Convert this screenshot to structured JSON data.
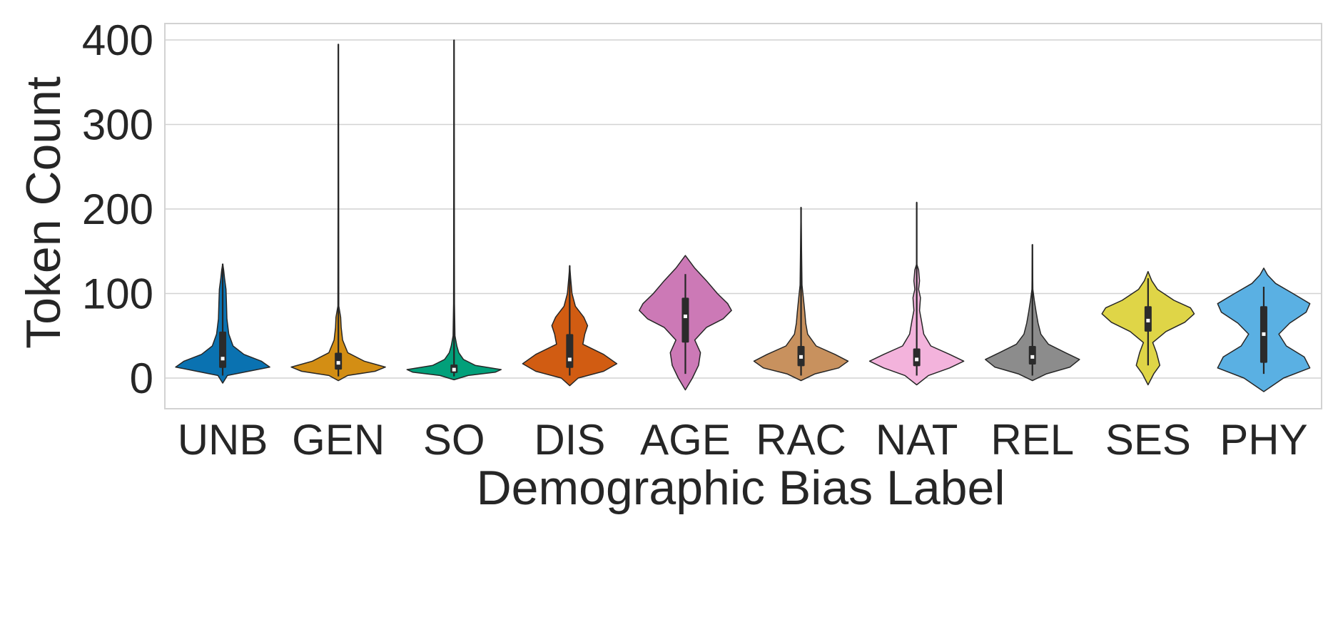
{
  "chart_data": {
    "type": "violin",
    "xlabel": "Demographic Bias Label",
    "ylabel": "Token Count",
    "ylim": [
      -37,
      420
    ],
    "yticks": [
      0,
      100,
      200,
      300,
      400
    ],
    "grid": "horizontal",
    "categories": [
      "UNB",
      "GEN",
      "SO",
      "DIS",
      "AGE",
      "RAC",
      "NAT",
      "REL",
      "SES",
      "PHY"
    ],
    "series": [
      {
        "category": "UNB",
        "color": "#0a72b1",
        "min": 3,
        "q1": 12,
        "median": 23,
        "q3": 55,
        "max": 135,
        "density": [
          [
            -6,
            0.0
          ],
          [
            3,
            0.1
          ],
          [
            8,
            0.55
          ],
          [
            13,
            1.0
          ],
          [
            20,
            0.82
          ],
          [
            28,
            0.45
          ],
          [
            38,
            0.22
          ],
          [
            52,
            0.13
          ],
          [
            70,
            0.09
          ],
          [
            90,
            0.08
          ],
          [
            105,
            0.07
          ],
          [
            118,
            0.04
          ],
          [
            128,
            0.02
          ],
          [
            135,
            0.0
          ]
        ]
      },
      {
        "category": "GEN",
        "color": "#d38e14",
        "min": 2,
        "q1": 10,
        "median": 18,
        "q3": 30,
        "max": 395,
        "density": [
          [
            -3,
            0.0
          ],
          [
            3,
            0.2
          ],
          [
            8,
            0.78
          ],
          [
            13,
            1.0
          ],
          [
            20,
            0.55
          ],
          [
            30,
            0.2
          ],
          [
            45,
            0.09
          ],
          [
            60,
            0.06
          ],
          [
            72,
            0.05
          ],
          [
            85,
            0.01
          ],
          [
            395,
            0.0
          ]
        ]
      },
      {
        "category": "SO",
        "color": "#02a07a",
        "min": 2,
        "q1": 6,
        "median": 10,
        "q3": 16,
        "max": 400,
        "density": [
          [
            -2,
            0.0
          ],
          [
            3,
            0.3
          ],
          [
            7,
            0.88
          ],
          [
            10,
            1.0
          ],
          [
            15,
            0.45
          ],
          [
            22,
            0.2
          ],
          [
            30,
            0.1
          ],
          [
            38,
            0.06
          ],
          [
            50,
            0.02
          ],
          [
            88,
            0.01
          ],
          [
            400,
            0.0
          ]
        ]
      },
      {
        "category": "DIS",
        "color": "#d15c12",
        "min": 3,
        "q1": 12,
        "median": 22,
        "q3": 52,
        "max": 133,
        "density": [
          [
            -9,
            0.0
          ],
          [
            0,
            0.18
          ],
          [
            8,
            0.72
          ],
          [
            17,
            1.0
          ],
          [
            28,
            0.72
          ],
          [
            40,
            0.28
          ],
          [
            52,
            0.32
          ],
          [
            62,
            0.38
          ],
          [
            72,
            0.3
          ],
          [
            85,
            0.12
          ],
          [
            100,
            0.05
          ],
          [
            118,
            0.02
          ],
          [
            133,
            0.0
          ]
        ]
      },
      {
        "category": "AGE",
        "color": "#cc79b6",
        "min": 5,
        "q1": 42,
        "median": 73,
        "q3": 95,
        "max": 123,
        "density": [
          [
            -14,
            0.0
          ],
          [
            0,
            0.15
          ],
          [
            15,
            0.28
          ],
          [
            30,
            0.32
          ],
          [
            45,
            0.2
          ],
          [
            60,
            0.45
          ],
          [
            70,
            0.8
          ],
          [
            80,
            0.98
          ],
          [
            88,
            0.9
          ],
          [
            100,
            0.68
          ],
          [
            115,
            0.45
          ],
          [
            130,
            0.2
          ],
          [
            145,
            0.0
          ]
        ]
      },
      {
        "category": "RAC",
        "color": "#c8915e",
        "min": 3,
        "q1": 14,
        "median": 25,
        "q3": 38,
        "max": 202,
        "density": [
          [
            -3,
            0.0
          ],
          [
            5,
            0.3
          ],
          [
            12,
            0.8
          ],
          [
            20,
            1.0
          ],
          [
            28,
            0.72
          ],
          [
            38,
            0.32
          ],
          [
            52,
            0.14
          ],
          [
            65,
            0.1
          ],
          [
            78,
            0.08
          ],
          [
            95,
            0.05
          ],
          [
            110,
            0.02
          ],
          [
            202,
            0.0
          ]
        ]
      },
      {
        "category": "NAT",
        "color": "#f3b3dc",
        "min": 3,
        "q1": 14,
        "median": 22,
        "q3": 35,
        "max": 208,
        "density": [
          [
            -8,
            0.0
          ],
          [
            3,
            0.25
          ],
          [
            12,
            0.7
          ],
          [
            20,
            1.0
          ],
          [
            28,
            0.7
          ],
          [
            38,
            0.3
          ],
          [
            52,
            0.15
          ],
          [
            68,
            0.1
          ],
          [
            80,
            0.06
          ],
          [
            95,
            0.08
          ],
          [
            105,
            0.04
          ],
          [
            115,
            0.06
          ],
          [
            128,
            0.04
          ],
          [
            135,
            0.0
          ],
          [
            208,
            0.0
          ]
        ]
      },
      {
        "category": "REL",
        "color": "#8c8c8c",
        "min": 3,
        "q1": 16,
        "median": 25,
        "q3": 38,
        "max": 158,
        "density": [
          [
            -3,
            0.0
          ],
          [
            5,
            0.3
          ],
          [
            13,
            0.8
          ],
          [
            22,
            1.0
          ],
          [
            30,
            0.7
          ],
          [
            40,
            0.34
          ],
          [
            52,
            0.18
          ],
          [
            65,
            0.12
          ],
          [
            78,
            0.08
          ],
          [
            92,
            0.04
          ],
          [
            105,
            0.01
          ],
          [
            158,
            0.0
          ]
        ]
      },
      {
        "category": "SES",
        "color": "#dfd547",
        "min": 15,
        "q1": 55,
        "median": 68,
        "q3": 85,
        "max": 118,
        "density": [
          [
            -8,
            0.0
          ],
          [
            5,
            0.12
          ],
          [
            15,
            0.25
          ],
          [
            30,
            0.18
          ],
          [
            42,
            0.1
          ],
          [
            55,
            0.38
          ],
          [
            66,
            0.78
          ],
          [
            76,
            0.98
          ],
          [
            83,
            0.9
          ],
          [
            92,
            0.55
          ],
          [
            105,
            0.2
          ],
          [
            115,
            0.08
          ],
          [
            126,
            0.0
          ]
        ]
      },
      {
        "category": "PHY",
        "color": "#5ab0e3",
        "min": 5,
        "q1": 18,
        "median": 52,
        "q3": 85,
        "max": 108,
        "density": [
          [
            -16,
            0.0
          ],
          [
            0,
            0.42
          ],
          [
            12,
            0.98
          ],
          [
            25,
            0.86
          ],
          [
            38,
            0.48
          ],
          [
            52,
            0.32
          ],
          [
            65,
            0.55
          ],
          [
            78,
            0.9
          ],
          [
            88,
            0.98
          ],
          [
            100,
            0.62
          ],
          [
            112,
            0.25
          ],
          [
            122,
            0.08
          ],
          [
            130,
            0.0
          ]
        ]
      }
    ]
  }
}
